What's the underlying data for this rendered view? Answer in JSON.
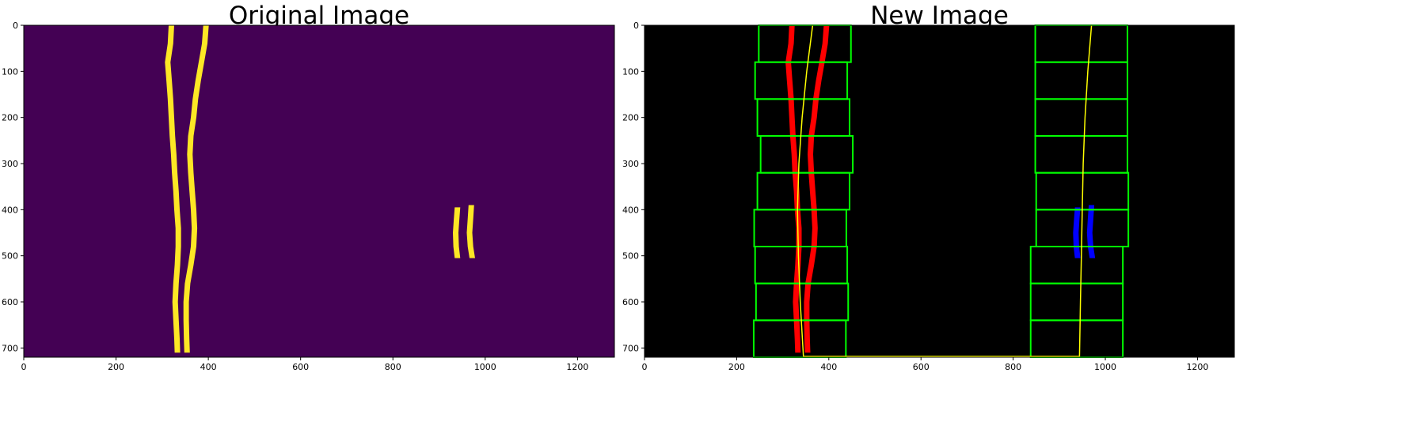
{
  "panels": [
    {
      "title": "Original Image",
      "background": "#440154",
      "lane_color": "#fde725",
      "xlim": [
        0,
        1280
      ],
      "ylim": [
        720,
        0
      ],
      "xticks": [
        0,
        200,
        400,
        600,
        800,
        1000,
        1200
      ],
      "yticks": [
        0,
        100,
        200,
        300,
        400,
        500,
        600,
        700
      ]
    },
    {
      "title": "New Image",
      "background": "#000000",
      "left_lane_color": "#ff0000",
      "right_lane_color": "#0000ff",
      "window_color": "#00ff00",
      "fit_color": "#ffff00",
      "xlim": [
        0,
        1280
      ],
      "ylim": [
        720,
        0
      ],
      "xticks": [
        0,
        200,
        400,
        600,
        800,
        1000,
        1200
      ],
      "yticks": [
        0,
        100,
        200,
        300,
        400,
        500,
        600,
        700
      ],
      "left_windows": [
        {
          "x1": 237,
          "x2": 437,
          "y1": 640,
          "y2": 720
        },
        {
          "x1": 242,
          "x2": 442,
          "y1": 560,
          "y2": 640
        },
        {
          "x1": 240,
          "x2": 440,
          "y1": 480,
          "y2": 560
        },
        {
          "x1": 238,
          "x2": 438,
          "y1": 400,
          "y2": 480
        },
        {
          "x1": 245,
          "x2": 445,
          "y1": 320,
          "y2": 400
        },
        {
          "x1": 252,
          "x2": 452,
          "y1": 240,
          "y2": 320
        },
        {
          "x1": 245,
          "x2": 445,
          "y1": 160,
          "y2": 240
        },
        {
          "x1": 240,
          "x2": 440,
          "y1": 80,
          "y2": 160
        },
        {
          "x1": 248,
          "x2": 448,
          "y1": 0,
          "y2": 80
        }
      ],
      "right_windows": [
        {
          "x1": 838,
          "x2": 1038,
          "y1": 640,
          "y2": 720
        },
        {
          "x1": 838,
          "x2": 1038,
          "y1": 560,
          "y2": 640
        },
        {
          "x1": 838,
          "x2": 1038,
          "y1": 480,
          "y2": 560
        },
        {
          "x1": 850,
          "x2": 1050,
          "y1": 400,
          "y2": 480
        },
        {
          "x1": 850,
          "x2": 1050,
          "y1": 320,
          "y2": 400
        },
        {
          "x1": 848,
          "x2": 1048,
          "y1": 240,
          "y2": 320
        },
        {
          "x1": 848,
          "x2": 1048,
          "y1": 160,
          "y2": 240
        },
        {
          "x1": 848,
          "x2": 1048,
          "y1": 80,
          "y2": 160
        },
        {
          "x1": 848,
          "x2": 1048,
          "y1": 0,
          "y2": 80
        }
      ]
    }
  ],
  "lanes": {
    "left_a": [
      [
        320,
        0
      ],
      [
        318,
        40
      ],
      [
        312,
        80
      ],
      [
        315,
        120
      ],
      [
        318,
        160
      ],
      [
        320,
        200
      ],
      [
        322,
        240
      ],
      [
        325,
        280
      ],
      [
        327,
        320
      ],
      [
        330,
        360
      ],
      [
        332,
        400
      ],
      [
        335,
        440
      ],
      [
        335,
        480
      ],
      [
        333,
        520
      ],
      [
        330,
        560
      ],
      [
        328,
        600
      ],
      [
        330,
        640
      ],
      [
        332,
        680
      ],
      [
        333,
        710
      ]
    ],
    "left_b": [
      [
        395,
        0
      ],
      [
        392,
        40
      ],
      [
        385,
        80
      ],
      [
        378,
        120
      ],
      [
        372,
        160
      ],
      [
        368,
        200
      ],
      [
        362,
        240
      ],
      [
        360,
        280
      ],
      [
        362,
        320
      ],
      [
        365,
        360
      ],
      [
        368,
        400
      ],
      [
        370,
        440
      ],
      [
        368,
        480
      ],
      [
        362,
        520
      ],
      [
        355,
        560
      ],
      [
        352,
        600
      ],
      [
        352,
        640
      ],
      [
        353,
        680
      ],
      [
        354,
        710
      ]
    ],
    "right_a": [
      [
        940,
        395
      ],
      [
        938,
        420
      ],
      [
        936,
        450
      ],
      [
        937,
        480
      ],
      [
        940,
        505
      ]
    ],
    "right_b": [
      [
        970,
        390
      ],
      [
        968,
        420
      ],
      [
        966,
        450
      ],
      [
        968,
        480
      ],
      [
        972,
        505
      ]
    ],
    "left_fit": [
      [
        365,
        0
      ],
      [
        352,
        100
      ],
      [
        342,
        200
      ],
      [
        335,
        300
      ],
      [
        332,
        400
      ],
      [
        334,
        500
      ],
      [
        338,
        600
      ],
      [
        345,
        720
      ]
    ],
    "right_fit": [
      [
        970,
        0
      ],
      [
        962,
        100
      ],
      [
        956,
        200
      ],
      [
        952,
        300
      ],
      [
        950,
        400
      ],
      [
        948,
        500
      ],
      [
        946,
        600
      ],
      [
        944,
        720
      ]
    ]
  }
}
